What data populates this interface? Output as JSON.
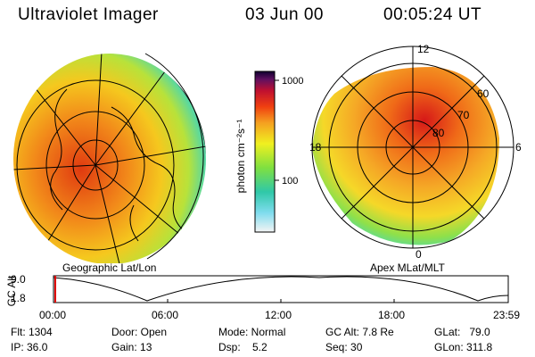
{
  "header": {
    "instrument": "Ultraviolet Imager",
    "date": "03 Jun 00",
    "time": "00:05:24 UT"
  },
  "colorbar": {
    "unit_label": "photon cm⁻²s⁻¹",
    "ticks": [
      "1000",
      "100"
    ]
  },
  "panels": {
    "left_label": "Geographic Lat/Lon",
    "right_label": "Apex MLat/MLT",
    "polar_mlt_labels": [
      "12",
      "18",
      "6",
      "0"
    ],
    "polar_mlat_labels": [
      "60",
      "70",
      "80"
    ]
  },
  "altitude_plot": {
    "title": "GC Alt",
    "y_ticks": [
      "9.0",
      "1.8"
    ],
    "x_ticks": [
      "00:00",
      "06:00",
      "12:00",
      "18:00",
      "23:59"
    ]
  },
  "status": {
    "flt": "Flt: 1304",
    "ip": "IP: 36.0",
    "door": "Door: Open",
    "gain": "Gain: 13",
    "mode": "Mode: Normal",
    "dsp": "Dsp:    5.2",
    "gcalt": "GC Alt: 7.8 Re",
    "seq": "Seq: 30",
    "glat": "GLat:   79.0",
    "glon": "GLon: 311.8"
  }
}
